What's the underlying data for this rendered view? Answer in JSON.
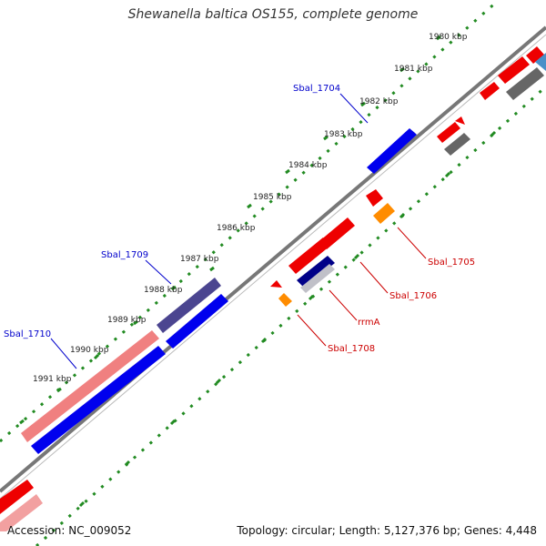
{
  "title": "Shewanella baltica OS155, complete genome",
  "footer": {
    "accession": "Accession: NC_009052",
    "summary": "Topology: circular; Length: 5,127,376 bp; Genes: 4,448"
  },
  "ruler_ticks": [
    "1980 kbp",
    "1981 kbp",
    "1982 kbp",
    "1983 kbp",
    "1984 kbp",
    "1985 kbp",
    "1986 kbp",
    "1987 kbp",
    "1988 kbp",
    "1989 kbp",
    "1990 kbp",
    "1991 kbp"
  ],
  "gene_labels": {
    "sbal_1704": "Sbal_1704",
    "sbal_1709": "Sbal_1709",
    "sbal_1710": "Sbal_1710",
    "sbal_1705": "Sbal_1705",
    "sbal_1706": "Sbal_1706",
    "rrmA": "rrmA",
    "sbal_1708": "Sbal_1708"
  },
  "colors": {
    "forward_cds": "#0000ee",
    "reverse_cds": "#ee0000",
    "pale_forward": "#f08080",
    "pale_reverse": "#f2a0a0",
    "navy_gene": "#4b4590",
    "gray_gene": "#666666",
    "orange_gene": "#ff8c00",
    "backbone": "#777777",
    "gc_ticks": "#228b22",
    "label_blue": "#0000cc",
    "label_red": "#cc0000"
  },
  "icons": [
    "gene-arrow",
    "ruler-tick"
  ]
}
